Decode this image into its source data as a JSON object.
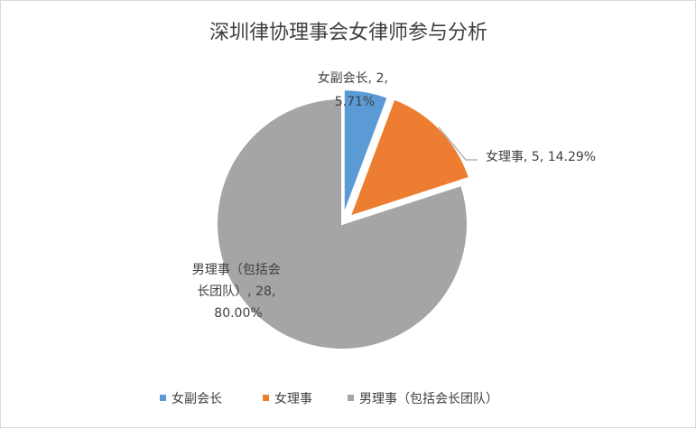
{
  "chart_data": {
    "type": "pie",
    "title": "深圳律协理事会女律师参与分析",
    "categories": [
      "女副会长",
      "女理事",
      "男理事（包括会长团队）"
    ],
    "values": [
      2,
      5,
      28
    ],
    "percentages": [
      "5.71%",
      "14.29%",
      "80.00%"
    ],
    "colors": [
      "#5b9bd5",
      "#ed7d31",
      "#a5a5a5"
    ],
    "data_labels": [
      [
        "女副会长, 2,",
        "5.71%"
      ],
      [
        "女理事, 5, 14.29%"
      ],
      [
        "男理事（包括会",
        "长团队）, 28,",
        "80.00%"
      ]
    ],
    "legend_position": "bottom"
  }
}
